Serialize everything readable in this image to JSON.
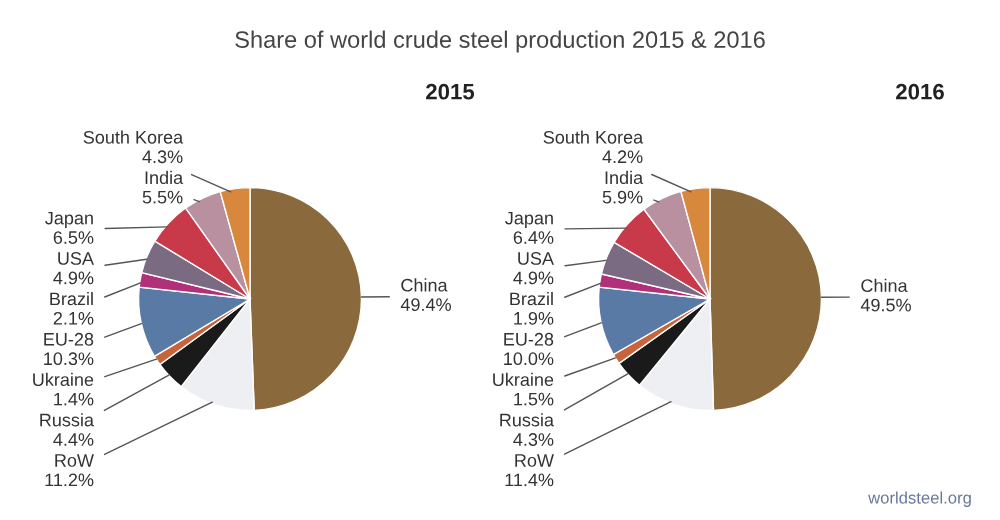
{
  "chart_data": [
    {
      "type": "pie",
      "title": "2015",
      "annotations": [
        "Share of world crude steel production 2015 & 2016"
      ],
      "categories": [
        "China",
        "RoW",
        "Russia",
        "Ukraine",
        "EU-28",
        "Brazil",
        "USA",
        "Japan",
        "India",
        "South Korea"
      ],
      "values": [
        49.4,
        11.2,
        4.4,
        1.4,
        10.3,
        2.1,
        4.9,
        6.5,
        5.5,
        4.3
      ],
      "value_labels": [
        "49.4%",
        "11.2%",
        "4.4%",
        "1.4%",
        "10.3%",
        "2.1%",
        "4.9%",
        "6.5%",
        "5.5%",
        "4.3%"
      ],
      "colors": [
        "#8a6a3c",
        "#eeeff3",
        "#1a1a1a",
        "#c8643c",
        "#5a7aa6",
        "#b0307a",
        "#7a6a82",
        "#c83a4a",
        "#b890a0",
        "#d8883c"
      ]
    },
    {
      "type": "pie",
      "title": "2016",
      "annotations": [
        "worldsteel.org"
      ],
      "categories": [
        "China",
        "RoW",
        "Russia",
        "Ukraine",
        "EU-28",
        "Brazil",
        "USA",
        "Japan",
        "India",
        "South Korea"
      ],
      "values": [
        49.5,
        11.4,
        4.3,
        1.5,
        10.0,
        1.9,
        4.9,
        6.4,
        5.9,
        4.2
      ],
      "value_labels": [
        "49.5%",
        "11.4%",
        "4.3%",
        "1.5%",
        "10.0%",
        "1.9%",
        "4.9%",
        "6.4%",
        "5.9%",
        "4.2%"
      ],
      "colors": [
        "#8a6a3c",
        "#eeeff3",
        "#1a1a1a",
        "#c8643c",
        "#5a7aa6",
        "#b0307a",
        "#7a6a82",
        "#c83a4a",
        "#b890a0",
        "#d8883c"
      ]
    }
  ]
}
